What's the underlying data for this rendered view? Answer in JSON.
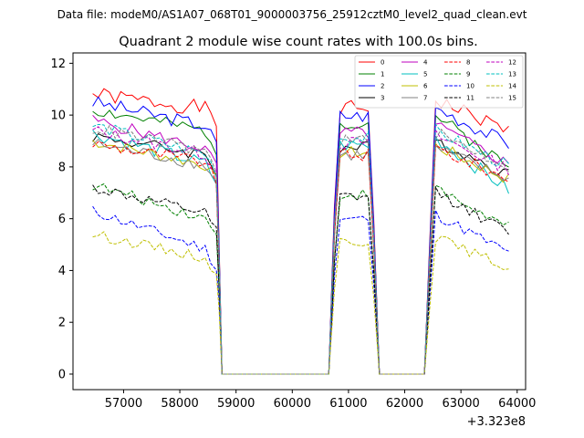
{
  "suptitle": "Data file: modeM0/AS1A07_068T01_9000003756_25912cztM0_level2_quad_clean.evt",
  "chart_data": {
    "type": "line",
    "title": "Quadrant 2 module wise count rates with 100.0s bins.",
    "xlabel": "",
    "ylabel": "",
    "x_offset_label": "+3.323e8",
    "xlim": [
      56100,
      64150
    ],
    "ylim": [
      -0.6,
      12.4
    ],
    "xticks": [
      57000,
      58000,
      59000,
      60000,
      61000,
      62000,
      63000,
      64000
    ],
    "xtick_labels": [
      "57000",
      "58000",
      "59000",
      "60000",
      "61000",
      "62000",
      "63000",
      "64000"
    ],
    "yticks": [
      0,
      2,
      4,
      6,
      8,
      10,
      12
    ],
    "ytick_labels": [
      "0",
      "2",
      "4",
      "6",
      "8",
      "10",
      "12"
    ],
    "grid": false,
    "legend": {
      "placement": "top-right",
      "columns": 4
    },
    "segments": [
      {
        "start": 56450,
        "end": 58650,
        "ramp_end": 58750
      },
      {
        "start": 60650,
        "ramp_start": 60650,
        "end": 61350,
        "ramp_end": 61650
      },
      {
        "start": 62550,
        "ramp_start": 62350,
        "end": 63850
      }
    ],
    "series": [
      {
        "name": "0",
        "color": "#ff0000",
        "dash": "solid",
        "level": 10.8,
        "seg1_slope": -0.6,
        "seg3_slope": -1.2,
        "noise": 0.3,
        "seed": 1
      },
      {
        "name": "1",
        "color": "#008000",
        "dash": "solid",
        "level": 10.2,
        "seg1_slope": -0.9,
        "seg3_slope": -2.0,
        "noise": 0.25,
        "seed": 2
      },
      {
        "name": "2",
        "color": "#0000ff",
        "dash": "solid",
        "level": 10.5,
        "seg1_slope": -1.0,
        "seg3_slope": -1.4,
        "noise": 0.28,
        "seed": 3
      },
      {
        "name": "3",
        "color": "#000000",
        "dash": "solid",
        "level": 9.2,
        "seg1_slope": -0.8,
        "seg3_slope": -1.3,
        "noise": 0.25,
        "seed": 4
      },
      {
        "name": "4",
        "color": "#bf00bf",
        "dash": "solid",
        "level": 9.8,
        "seg1_slope": -1.2,
        "seg3_slope": -1.5,
        "noise": 0.25,
        "seed": 5
      },
      {
        "name": "5",
        "color": "#00bfbf",
        "dash": "solid",
        "level": 9.3,
        "seg1_slope": -1.3,
        "seg3_slope": -2.0,
        "noise": 0.28,
        "seed": 6
      },
      {
        "name": "6",
        "color": "#bfbf00",
        "dash": "solid",
        "level": 9.0,
        "seg1_slope": -1.0,
        "seg3_slope": -1.3,
        "noise": 0.25,
        "seed": 7
      },
      {
        "name": "7",
        "color": "#808080",
        "dash": "solid",
        "level": 8.9,
        "seg1_slope": -0.9,
        "seg3_slope": -1.2,
        "noise": 0.25,
        "seed": 8
      },
      {
        "name": "8",
        "color": "#ff0000",
        "dash": "dashed",
        "level": 8.9,
        "seg1_slope": -0.8,
        "seg3_slope": -1.2,
        "noise": 0.25,
        "seed": 9
      },
      {
        "name": "9",
        "color": "#008000",
        "dash": "dashed",
        "level": 7.3,
        "seg1_slope": -1.4,
        "seg3_slope": -1.5,
        "noise": 0.22,
        "seed": 10
      },
      {
        "name": "10",
        "color": "#0000ff",
        "dash": "dashed",
        "level": 6.3,
        "seg1_slope": -1.6,
        "seg3_slope": -1.5,
        "noise": 0.22,
        "seed": 11
      },
      {
        "name": "11",
        "color": "#000000",
        "dash": "dashed",
        "level": 7.2,
        "seg1_slope": -1.1,
        "seg3_slope": -1.6,
        "noise": 0.22,
        "seed": 12
      },
      {
        "name": "12",
        "color": "#bf00bf",
        "dash": "dashed",
        "level": 9.4,
        "seg1_slope": -1.0,
        "seg3_slope": -1.3,
        "noise": 0.25,
        "seed": 13
      },
      {
        "name": "13",
        "color": "#00bfbf",
        "dash": "dashed",
        "level": 9.6,
        "seg1_slope": -1.2,
        "seg3_slope": -1.4,
        "noise": 0.25,
        "seed": 14
      },
      {
        "name": "14",
        "color": "#bfbf00",
        "dash": "dashed",
        "level": 5.4,
        "seg1_slope": -1.0,
        "seg3_slope": -1.2,
        "noise": 0.2,
        "seed": 15
      },
      {
        "name": "15",
        "color": "#808080",
        "dash": "dashed",
        "level": 9.5,
        "seg1_slope": -1.0,
        "seg3_slope": -1.3,
        "noise": 0.25,
        "seed": 16
      }
    ]
  }
}
